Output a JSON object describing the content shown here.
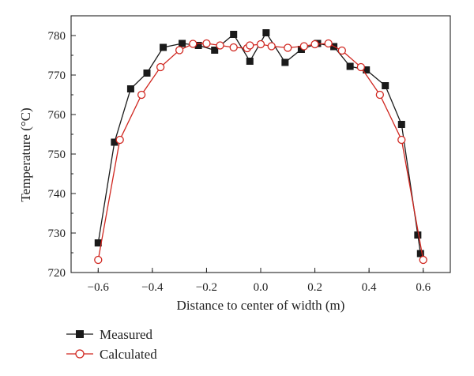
{
  "chart_data": {
    "type": "line",
    "xlabel": "Distance to center of width (m)",
    "ylabel": "Temperature (°C)",
    "xlim": [
      -0.7,
      0.7
    ],
    "ylim": [
      720,
      785
    ],
    "xticks": [
      -0.6,
      -0.4,
      -0.2,
      0.0,
      0.2,
      0.4,
      0.6
    ],
    "xtick_labels": [
      "−0.6",
      "−0.4",
      "−0.2",
      "0.0",
      "0.2",
      "0.4",
      "0.6"
    ],
    "yticks": [
      720,
      730,
      740,
      750,
      760,
      770,
      780
    ],
    "ytick_labels": [
      "720",
      "730",
      "740",
      "750",
      "760",
      "770",
      "780"
    ],
    "grid": false,
    "legend_position": "bottom-left",
    "series": [
      {
        "name": "Measured",
        "color": "#1a1a1a",
        "marker": "filled-square",
        "points": [
          [
            -0.6,
            727.5
          ],
          [
            -0.54,
            753.0
          ],
          [
            -0.48,
            766.5
          ],
          [
            -0.42,
            770.5
          ],
          [
            -0.36,
            777.0
          ],
          [
            -0.29,
            778.0
          ],
          [
            -0.23,
            777.5
          ],
          [
            -0.17,
            776.3
          ],
          [
            -0.1,
            780.3
          ],
          [
            -0.04,
            773.5
          ],
          [
            0.02,
            780.7
          ],
          [
            0.09,
            773.2
          ],
          [
            0.15,
            776.5
          ],
          [
            0.21,
            778.0
          ],
          [
            0.27,
            777.2
          ],
          [
            0.33,
            772.2
          ],
          [
            0.39,
            771.3
          ],
          [
            0.46,
            767.3
          ],
          [
            0.52,
            757.5
          ],
          [
            0.58,
            729.5
          ],
          [
            0.59,
            724.8
          ]
        ]
      },
      {
        "name": "Calculated",
        "color": "#d0261f",
        "marker": "open-circle",
        "points": [
          [
            -0.6,
            723.2
          ],
          [
            -0.52,
            753.6
          ],
          [
            -0.44,
            765.0
          ],
          [
            -0.37,
            772.0
          ],
          [
            -0.3,
            776.3
          ],
          [
            -0.25,
            777.9
          ],
          [
            -0.2,
            778.0
          ],
          [
            -0.15,
            777.5
          ],
          [
            -0.1,
            777.0
          ],
          [
            -0.05,
            776.8
          ],
          [
            -0.04,
            777.5
          ],
          [
            0.0,
            777.8
          ],
          [
            0.04,
            777.3
          ],
          [
            0.1,
            776.9
          ],
          [
            0.16,
            777.3
          ],
          [
            0.2,
            777.8
          ],
          [
            0.25,
            778.0
          ],
          [
            0.3,
            776.2
          ],
          [
            0.37,
            772.0
          ],
          [
            0.44,
            765.0
          ],
          [
            0.52,
            753.6
          ],
          [
            0.6,
            723.2
          ]
        ]
      }
    ]
  }
}
